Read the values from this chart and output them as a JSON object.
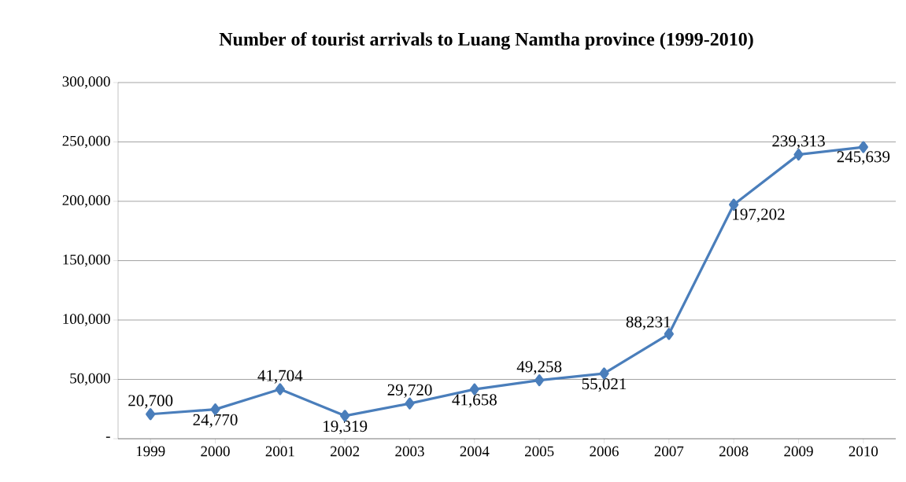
{
  "chart_data": {
    "type": "line",
    "title": "Number of tourist arrivals to Luang Namtha province (1999-2010)",
    "categories": [
      "1999",
      "2000",
      "2001",
      "2002",
      "2003",
      "2004",
      "2005",
      "2006",
      "2007",
      "2008",
      "2009",
      "2010"
    ],
    "series": [
      {
        "color": "#4a7ebb",
        "values": [
          20700,
          24770,
          41704,
          19319,
          29720,
          41658,
          49258,
          55021,
          88231,
          197202,
          239313,
          245639
        ],
        "value_labels": [
          "20,700",
          "24,770",
          "41,704",
          "19,319",
          "29,720",
          "41,658",
          "49,258",
          "55,021",
          "88,231",
          "197,202",
          "239,313",
          "245,639"
        ]
      }
    ],
    "ylim": [
      0,
      300000
    ],
    "yticks": [
      {
        "value": 0,
        "label": "-"
      },
      {
        "value": 50000,
        "label": "50,000"
      },
      {
        "value": 100000,
        "label": "100,000"
      },
      {
        "value": 150000,
        "label": "150,000"
      },
      {
        "value": 200000,
        "label": "200,000"
      },
      {
        "value": 250000,
        "label": "250,000"
      },
      {
        "value": 300000,
        "label": "300,000"
      }
    ],
    "grid": "y",
    "marker": "diamond",
    "line_style": "solid"
  }
}
